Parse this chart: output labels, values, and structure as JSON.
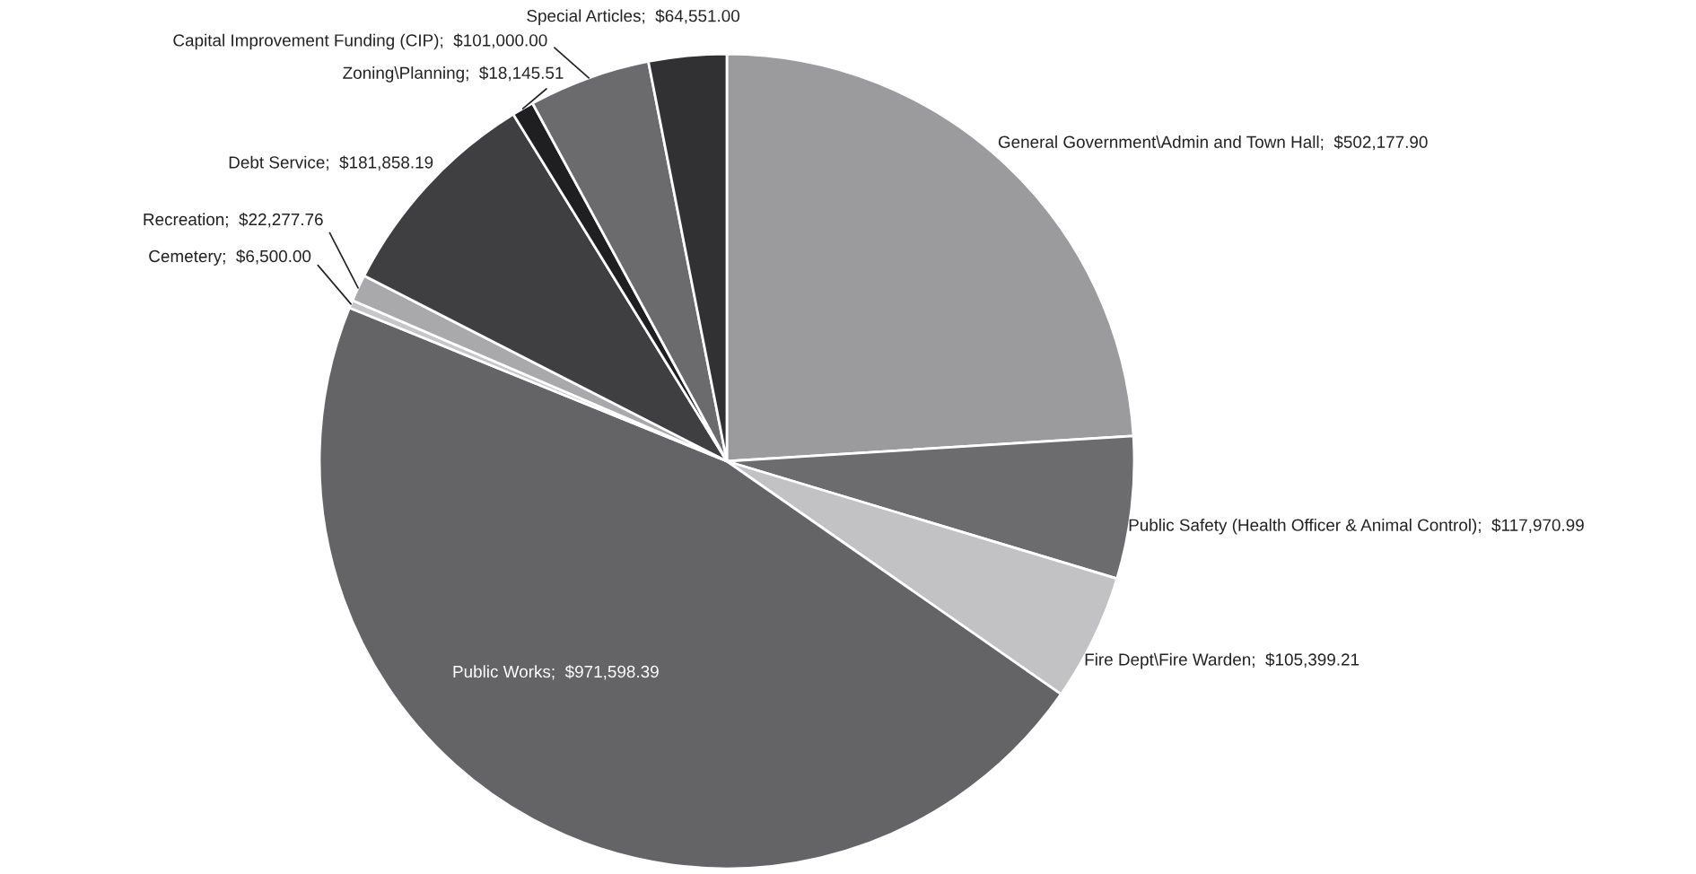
{
  "chart_data": {
    "type": "pie",
    "categories": [
      "General Government\\Admin and Town Hall",
      "Public Safety (Health Officer & Animal Control)",
      "Fire Dept\\Fire Warden",
      "Public Works",
      "Cemetery",
      "Recreation",
      "Debt Service",
      "Zoning\\Planning",
      "Capital Improvement Funding (CIP)",
      "Special Articles"
    ],
    "values": [
      502177.9,
      117970.99,
      105399.21,
      971598.39,
      6500.0,
      22277.76,
      181858.19,
      18145.51,
      101000.0,
      64551.0
    ],
    "value_labels": [
      "$502,177.90",
      "$117,970.99",
      "$105,399.21",
      "$971,598.39",
      "$6,500.00",
      "$22,277.76",
      "$181,858.19",
      "$18,145.51",
      "$101,000.00",
      "$64,551.00"
    ],
    "colors": [
      "#9b9b9e",
      "#6c6c6f",
      "#c2c2c4",
      "#646467",
      "#c6c6c8",
      "#a9a9ab",
      "#3f3f41",
      "#1f1f21",
      "#6b6b6e",
      "#313133"
    ]
  }
}
